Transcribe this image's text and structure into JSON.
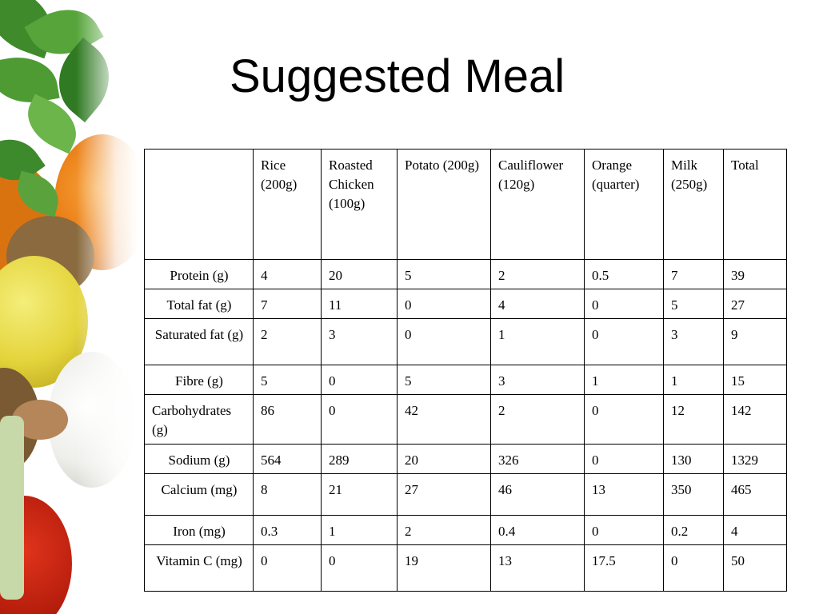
{
  "slide": {
    "title": "Suggested Meal"
  },
  "table": {
    "columns": [
      "",
      "Rice (200g)",
      "Roasted Chicken (100g)",
      "Potato (200g)",
      "Cauliflower (120g)",
      "Orange (quarter)",
      "Milk (250g)",
      "Total"
    ],
    "rows": [
      {
        "label": "Protein (g)",
        "values": [
          "4",
          "20",
          "5",
          "2",
          "0.5",
          "7",
          "39"
        ]
      },
      {
        "label": "Total fat (g)",
        "values": [
          "7",
          "11",
          "0",
          "4",
          "0",
          "5",
          "27"
        ]
      },
      {
        "label": "Saturated fat (g)",
        "values": [
          "2",
          "3",
          "0",
          "1",
          "0",
          "3",
          "9"
        ]
      },
      {
        "label": "Fibre (g)",
        "values": [
          "5",
          "0",
          "5",
          "3",
          "1",
          "1",
          "15"
        ]
      },
      {
        "label": "Carbohydrates (g)",
        "values": [
          "86",
          "0",
          "42",
          "2",
          "0",
          "12",
          "142"
        ]
      },
      {
        "label": "Sodium (g)",
        "values": [
          "564",
          "289",
          "20",
          "326",
          "0",
          "130",
          "1329"
        ]
      },
      {
        "label": "Calcium (mg)",
        "values": [
          "8",
          "21",
          "27",
          "46",
          "13",
          "350",
          "465"
        ]
      },
      {
        "label": "Iron (mg)",
        "values": [
          "0.3",
          "1",
          "2",
          "0.4",
          "0",
          "0.2",
          "4"
        ]
      },
      {
        "label": "Vitamin C (mg)",
        "values": [
          "0",
          "0",
          "19",
          "13",
          "17.5",
          "0",
          "50"
        ]
      }
    ]
  },
  "colors": {
    "background": "#ffffff",
    "text": "#000000",
    "border": "#000000"
  }
}
